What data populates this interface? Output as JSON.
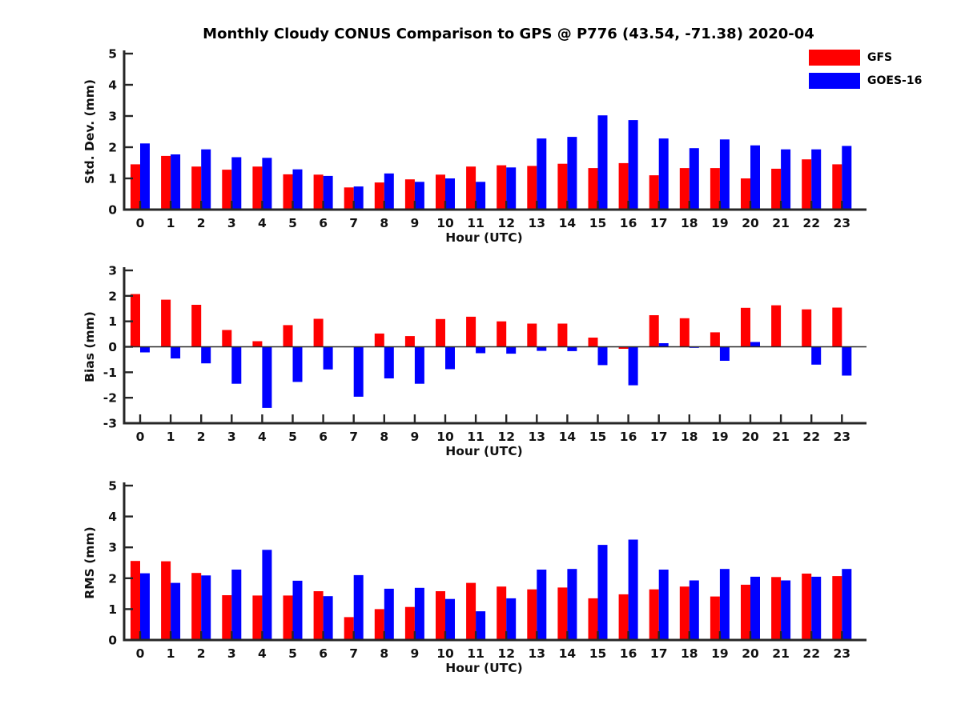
{
  "figure": {
    "title": "Monthly Cloudy CONUS Comparison to GPS @ P776 (43.54, -71.38) 2020-04",
    "background_color": "#ffffff",
    "axis_color": "#262626"
  },
  "legend": {
    "position": "top-right",
    "items": [
      {
        "label": "GFS",
        "color": "#ff0000"
      },
      {
        "label": "GOES-16",
        "color": "#0000ff"
      }
    ]
  },
  "chart_data": [
    {
      "type": "bar",
      "title": "",
      "ylabel": "Std. Dev. (mm)",
      "xlabel": "Hour (UTC)",
      "ylim": [
        0,
        5
      ],
      "yticks": [
        0,
        1,
        2,
        3,
        4,
        5
      ],
      "grid": false,
      "categories": [
        0,
        1,
        2,
        3,
        4,
        5,
        6,
        7,
        8,
        9,
        10,
        11,
        12,
        13,
        14,
        15,
        16,
        17,
        18,
        19,
        20,
        21,
        22,
        23
      ],
      "series": [
        {
          "name": "GFS",
          "color": "#ff0000",
          "values": [
            1.45,
            1.72,
            1.38,
            1.28,
            1.38,
            1.13,
            1.12,
            0.71,
            0.87,
            0.97,
            1.12,
            1.38,
            1.42,
            1.4,
            1.47,
            1.33,
            1.49,
            1.1,
            1.33,
            1.33,
            1.0,
            1.31,
            1.61,
            1.45
          ]
        },
        {
          "name": "GOES-16",
          "color": "#0000ff",
          "values": [
            2.12,
            1.77,
            1.93,
            1.68,
            1.66,
            1.29,
            1.08,
            0.74,
            1.16,
            0.89,
            1.0,
            0.89,
            1.35,
            2.28,
            2.33,
            3.02,
            2.87,
            2.28,
            1.97,
            2.25,
            2.06,
            1.93,
            1.93,
            2.04
          ]
        }
      ]
    },
    {
      "type": "bar",
      "title": "",
      "ylabel": "Bias (mm)",
      "xlabel": "Hour (UTC)",
      "ylim": [
        -3,
        3
      ],
      "yticks": [
        -3,
        -2,
        -1,
        0,
        1,
        2,
        3
      ],
      "grid": false,
      "zero_line": true,
      "categories": [
        0,
        1,
        2,
        3,
        4,
        5,
        6,
        7,
        8,
        9,
        10,
        11,
        12,
        13,
        14,
        15,
        16,
        17,
        18,
        19,
        20,
        21,
        22,
        23
      ],
      "series": [
        {
          "name": "GFS",
          "color": "#ff0000",
          "values": [
            2.07,
            1.85,
            1.65,
            0.66,
            0.22,
            0.85,
            1.1,
            0.0,
            0.52,
            0.42,
            1.09,
            1.18,
            1.0,
            0.91,
            0.91,
            0.36,
            -0.08,
            1.24,
            1.12,
            0.57,
            1.53,
            1.63,
            1.47,
            1.54
          ]
        },
        {
          "name": "GOES-16",
          "color": "#0000ff",
          "values": [
            -0.22,
            -0.46,
            -0.65,
            -1.45,
            -2.4,
            -1.38,
            -0.89,
            -1.96,
            -1.24,
            -1.45,
            -0.88,
            -0.25,
            -0.27,
            -0.16,
            -0.17,
            -0.72,
            -1.51,
            0.14,
            -0.04,
            -0.55,
            0.19,
            0.0,
            -0.7,
            -1.13
          ]
        }
      ]
    },
    {
      "type": "bar",
      "title": "",
      "ylabel": "RMS (mm)",
      "xlabel": "Hour (UTC)",
      "ylim": [
        0,
        5
      ],
      "yticks": [
        0,
        1,
        2,
        3,
        4,
        5
      ],
      "grid": false,
      "categories": [
        0,
        1,
        2,
        3,
        4,
        5,
        6,
        7,
        8,
        9,
        10,
        11,
        12,
        13,
        14,
        15,
        16,
        17,
        18,
        19,
        20,
        21,
        22,
        23
      ],
      "series": [
        {
          "name": "GFS",
          "color": "#ff0000",
          "values": [
            2.56,
            2.55,
            2.17,
            1.45,
            1.44,
            1.44,
            1.58,
            0.74,
            1.0,
            1.07,
            1.58,
            1.85,
            1.73,
            1.64,
            1.7,
            1.35,
            1.48,
            1.64,
            1.73,
            1.41,
            1.79,
            2.04,
            2.15,
            2.07
          ]
        },
        {
          "name": "GOES-16",
          "color": "#0000ff",
          "values": [
            2.16,
            1.85,
            2.09,
            2.28,
            2.92,
            1.92,
            1.42,
            2.1,
            1.66,
            1.69,
            1.33,
            0.93,
            1.35,
            2.28,
            2.3,
            3.08,
            3.25,
            2.28,
            1.93,
            2.3,
            2.05,
            1.93,
            2.05,
            2.3
          ]
        }
      ]
    }
  ]
}
